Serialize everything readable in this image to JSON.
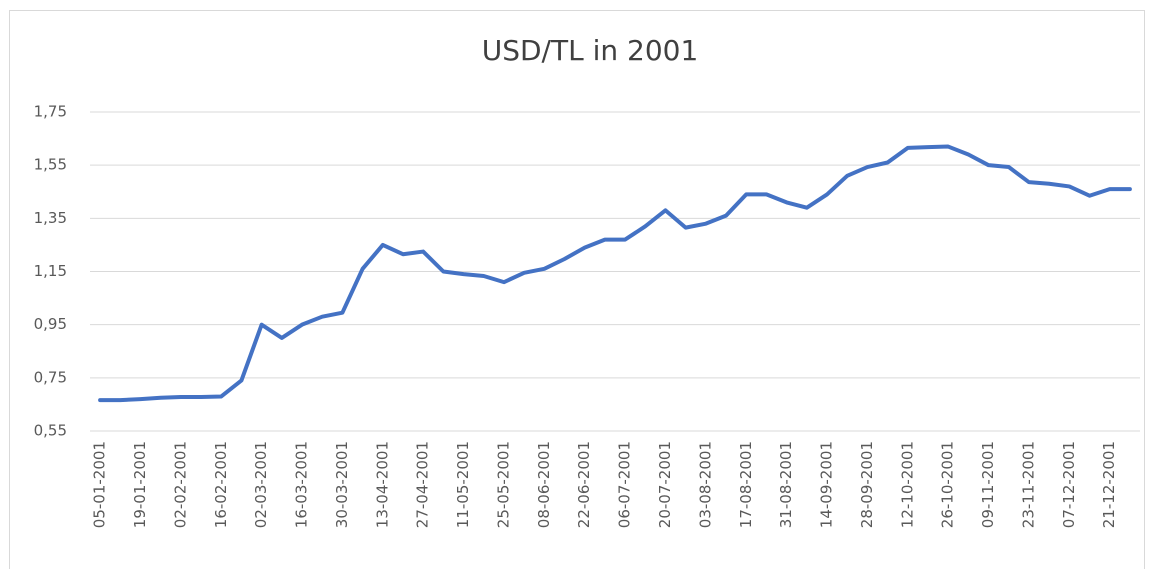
{
  "chart_data": {
    "type": "line",
    "title": "USD/TL in 2001",
    "categories": [
      "05-01-2001",
      null,
      "19-01-2001",
      null,
      "02-02-2001",
      null,
      "16-02-2001",
      null,
      "02-03-2001",
      null,
      "16-03-2001",
      null,
      "30-03-2001",
      null,
      "13-04-2001",
      null,
      "27-04-2001",
      null,
      "11-05-2001",
      null,
      "25-05-2001",
      null,
      "08-06-2001",
      null,
      "22-06-2001",
      null,
      "06-07-2001",
      null,
      "20-07-2001",
      null,
      "03-08-2001",
      null,
      "17-08-2001",
      null,
      "31-08-2001",
      null,
      "14-09-2001",
      null,
      "28-09-2001",
      null,
      "12-10-2001",
      null,
      "26-10-2001",
      null,
      "09-11-2001",
      null,
      "23-11-2001",
      null,
      "07-12-2001",
      null,
      "21-12-2001",
      null
    ],
    "series": [
      {
        "color": "#4472c4",
        "values": [
          0.666,
          0.666,
          0.67,
          0.675,
          0.678,
          0.678,
          0.68,
          0.74,
          0.95,
          0.9,
          0.95,
          0.98,
          0.995,
          1.16,
          1.25,
          1.215,
          1.225,
          1.15,
          1.14,
          1.133,
          1.11,
          1.145,
          1.16,
          1.197,
          1.24,
          1.27,
          1.27,
          1.32,
          1.38,
          1.315,
          1.33,
          1.36,
          1.44,
          1.44,
          1.41,
          1.39,
          1.44,
          1.51,
          1.543,
          1.56,
          1.615,
          1.618,
          1.62,
          1.59,
          1.55,
          1.543,
          1.486,
          1.48,
          1.47,
          1.435,
          1.46,
          1.46
        ]
      }
    ],
    "ylim": [
      0.55,
      1.75
    ],
    "yticks": [
      {
        "value": 0.55,
        "label": "0,55"
      },
      {
        "value": 0.75,
        "label": "0,75"
      },
      {
        "value": 0.95,
        "label": "0,95"
      },
      {
        "value": 1.15,
        "label": "1,15"
      },
      {
        "value": 1.35,
        "label": "1,35"
      },
      {
        "value": 1.55,
        "label": "1,55"
      },
      {
        "value": 1.75,
        "label": "1,75"
      }
    ],
    "grid": true
  }
}
